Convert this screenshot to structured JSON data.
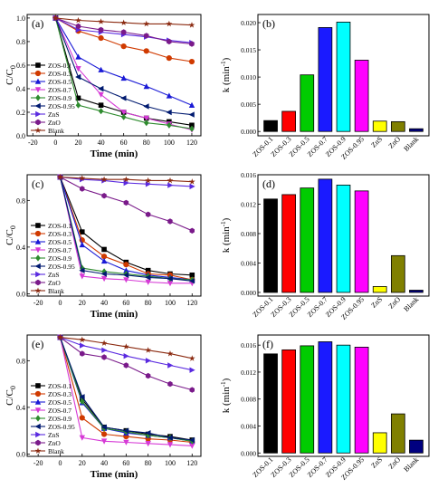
{
  "figure": {
    "background": "#ffffff"
  },
  "styles": {
    "ZOS-0.1": {
      "color": "#000000",
      "marker": "square"
    },
    "ZOS-0.3": {
      "color": "#d03a00",
      "marker": "circle"
    },
    "ZOS-0.5": {
      "color": "#1a1ad6",
      "marker": "triangle-up"
    },
    "ZOS-0.7": {
      "color": "#d63ad6",
      "marker": "triangle-down"
    },
    "ZOS-0.9": {
      "color": "#2e8b2e",
      "marker": "diamond"
    },
    "ZOS-0.95": {
      "color": "#001a70",
      "marker": "triangle-left"
    },
    "ZnS": {
      "color": "#5a2ae0",
      "marker": "triangle-right"
    },
    "ZnO": {
      "color": "#7a1a8a",
      "marker": "hexagon"
    },
    "Blank": {
      "color": "#8b2a10",
      "marker": "star"
    }
  },
  "chart_data": [
    {
      "panel": "(a)",
      "type": "line",
      "xlabel": "Time (min)",
      "ylabel": "C/C",
      "ylabel_sub": "0",
      "xlim": [
        -25,
        128
      ],
      "ylim": [
        0,
        1.03
      ],
      "xticks": [
        -20,
        0,
        20,
        40,
        60,
        80,
        100,
        120
      ],
      "yticks": [
        0.0,
        0.2,
        0.4,
        0.6,
        0.8,
        1.0
      ],
      "ytick_labels": [
        "0.0",
        "0.2",
        "0.4",
        "0.6",
        "0.8",
        "1.0"
      ],
      "legend": "left",
      "x": [
        0,
        20,
        40,
        60,
        80,
        100,
        120
      ],
      "series": [
        {
          "name": "ZOS-0.1",
          "values": [
            1.0,
            0.32,
            0.26,
            0.2,
            0.15,
            0.12,
            0.09
          ]
        },
        {
          "name": "ZOS-0.3",
          "values": [
            1.0,
            0.89,
            0.83,
            0.76,
            0.72,
            0.66,
            0.63
          ]
        },
        {
          "name": "ZOS-0.5",
          "values": [
            1.0,
            0.67,
            0.56,
            0.49,
            0.42,
            0.34,
            0.26
          ]
        },
        {
          "name": "ZOS-0.7",
          "values": [
            1.0,
            0.57,
            0.35,
            0.2,
            0.15,
            0.1,
            0.05
          ]
        },
        {
          "name": "ZOS-0.9",
          "values": [
            1.0,
            0.26,
            0.21,
            0.16,
            0.11,
            0.09,
            0.06
          ]
        },
        {
          "name": "ZOS-0.95",
          "values": [
            1.0,
            0.5,
            0.4,
            0.32,
            0.25,
            0.2,
            0.18
          ]
        },
        {
          "name": "ZnS",
          "values": [
            1.0,
            0.9,
            0.88,
            0.86,
            0.84,
            0.81,
            0.79
          ]
        },
        {
          "name": "ZnO",
          "values": [
            1.0,
            0.93,
            0.9,
            0.88,
            0.85,
            0.8,
            0.78
          ]
        },
        {
          "name": "Blank",
          "values": [
            1.0,
            0.98,
            0.97,
            0.96,
            0.95,
            0.95,
            0.94
          ]
        }
      ]
    },
    {
      "panel": "(b)",
      "type": "bar",
      "ylabel": "k (min",
      "ylabel_sup": "-1",
      "ylim": [
        -0.0008,
        0.0215
      ],
      "yticks": [
        0,
        0.005,
        0.01,
        0.015,
        0.02
      ],
      "ytick_labels": [
        "0.000",
        "0.005",
        "0.010",
        "0.015",
        "0.020"
      ],
      "categories": [
        "ZOS-0.1",
        "ZOS-0.3",
        "ZOS-0.5",
        "ZOS-0.7",
        "ZOS-0.9",
        "ZOS-0.95",
        "ZnS",
        "ZnO",
        "Blank"
      ],
      "values": [
        0.002,
        0.0037,
        0.0104,
        0.0191,
        0.0201,
        0.0131,
        0.0019,
        0.0018,
        0.0005
      ],
      "colors": [
        "#000000",
        "#ff0000",
        "#00cc00",
        "#1a1aff",
        "#00ffff",
        "#ff00ff",
        "#ffff00",
        "#808000",
        "#000080"
      ]
    },
    {
      "panel": "(c)",
      "type": "line",
      "xlabel": "Time (min)",
      "ylabel": "C/C",
      "ylabel_sub": "0",
      "xlim": [
        -30,
        128
      ],
      "ylim": [
        -0.02,
        1.02
      ],
      "xticks": [
        -20,
        0,
        20,
        40,
        60,
        80,
        100,
        120
      ],
      "yticks": [
        0.0,
        0.4,
        0.8
      ],
      "ytick_labels": [
        "0.0",
        "0.4",
        "0.8"
      ],
      "legend": "left",
      "x": [
        0,
        20,
        40,
        60,
        80,
        100,
        120
      ],
      "series": [
        {
          "name": "ZOS-0.1",
          "values": [
            1.0,
            0.53,
            0.38,
            0.27,
            0.2,
            0.17,
            0.16
          ]
        },
        {
          "name": "ZOS-0.3",
          "values": [
            1.0,
            0.46,
            0.32,
            0.25,
            0.17,
            0.16,
            0.12
          ]
        },
        {
          "name": "ZOS-0.5",
          "values": [
            1.0,
            0.42,
            0.28,
            0.2,
            0.16,
            0.14,
            0.12
          ]
        },
        {
          "name": "ZOS-0.7",
          "values": [
            1.0,
            0.15,
            0.13,
            0.12,
            0.1,
            0.09,
            0.09
          ]
        },
        {
          "name": "ZOS-0.9",
          "values": [
            1.0,
            0.22,
            0.19,
            0.17,
            0.15,
            0.13,
            0.12
          ]
        },
        {
          "name": "ZOS-0.95",
          "values": [
            1.0,
            0.2,
            0.17,
            0.16,
            0.14,
            0.13,
            0.11
          ]
        },
        {
          "name": "ZnS",
          "values": [
            1.0,
            0.98,
            0.97,
            0.95,
            0.94,
            0.93,
            0.92
          ]
        },
        {
          "name": "ZnO",
          "values": [
            1.0,
            0.9,
            0.84,
            0.78,
            0.68,
            0.62,
            0.54
          ]
        },
        {
          "name": "Blank",
          "values": [
            1.0,
            0.99,
            0.98,
            0.98,
            0.97,
            0.97,
            0.96
          ]
        }
      ]
    },
    {
      "panel": "(d)",
      "type": "bar",
      "ylabel": "k (min",
      "ylabel_sup": "-1",
      "ylim": [
        -0.0005,
        0.016
      ],
      "yticks": [
        0,
        0.004,
        0.008,
        0.012,
        0.016
      ],
      "ytick_labels": [
        "0.000",
        "0.004",
        "0.008",
        "0.012",
        "0.016"
      ],
      "categories": [
        "ZOS-0.1",
        "ZOS-0.3",
        "ZOS-0.5",
        "ZOS-0.7",
        "ZOS-0.9",
        "ZOS-0.95",
        "ZnS",
        "ZnO",
        "Blank"
      ],
      "values": [
        0.0127,
        0.0133,
        0.0142,
        0.0154,
        0.0146,
        0.0138,
        0.0008,
        0.005,
        0.0003
      ],
      "colors": [
        "#000000",
        "#ff0000",
        "#00cc00",
        "#1a1aff",
        "#00ffff",
        "#ff00ff",
        "#ffff00",
        "#808000",
        "#000080"
      ]
    },
    {
      "panel": "(e)",
      "type": "line",
      "xlabel": "Time (min)",
      "ylabel": "C/C",
      "ylabel_sub": "0",
      "xlim": [
        -30,
        128
      ],
      "ylim": [
        -0.02,
        1.02
      ],
      "xticks": [
        -20,
        0,
        20,
        40,
        60,
        80,
        100,
        120
      ],
      "yticks": [
        0.0,
        0.4,
        0.8
      ],
      "ytick_labels": [
        "0.0",
        "0.4",
        "0.8"
      ],
      "legend": "left",
      "x": [
        0,
        20,
        40,
        60,
        80,
        100,
        120
      ],
      "series": [
        {
          "name": "ZOS-0.1",
          "values": [
            1.0,
            0.47,
            0.23,
            0.2,
            0.17,
            0.15,
            0.12
          ]
        },
        {
          "name": "ZOS-0.3",
          "values": [
            1.0,
            0.31,
            0.17,
            0.15,
            0.13,
            0.12,
            0.1
          ]
        },
        {
          "name": "ZOS-0.5",
          "values": [
            1.0,
            0.44,
            0.22,
            0.18,
            0.16,
            0.14,
            0.11
          ]
        },
        {
          "name": "ZOS-0.7",
          "values": [
            1.0,
            0.14,
            0.11,
            0.1,
            0.09,
            0.08,
            0.07
          ]
        },
        {
          "name": "ZOS-0.9",
          "values": [
            1.0,
            0.45,
            0.22,
            0.19,
            0.16,
            0.14,
            0.11
          ]
        },
        {
          "name": "ZOS-0.95",
          "values": [
            1.0,
            0.49,
            0.23,
            0.2,
            0.18,
            0.14,
            0.12
          ]
        },
        {
          "name": "ZnS",
          "values": [
            1.0,
            0.93,
            0.89,
            0.84,
            0.8,
            0.76,
            0.72
          ]
        },
        {
          "name": "ZnO",
          "values": [
            1.0,
            0.86,
            0.83,
            0.76,
            0.67,
            0.6,
            0.55
          ]
        },
        {
          "name": "Blank",
          "values": [
            1.0,
            0.98,
            0.95,
            0.92,
            0.89,
            0.86,
            0.82
          ]
        }
      ]
    },
    {
      "panel": "(f)",
      "type": "bar",
      "ylabel": "k (min",
      "ylabel_sup": "-1",
      "ylim": [
        -0.0005,
        0.0175
      ],
      "yticks": [
        0,
        0.004,
        0.008,
        0.012,
        0.016
      ],
      "ytick_labels": [
        "0.000",
        "0.004",
        "0.008",
        "0.012",
        "0.016"
      ],
      "categories": [
        "ZOS-0.1",
        "ZOS-0.3",
        "ZOS-0.5",
        "ZOS-0.7",
        "ZOS-0.9",
        "ZOS-0.95",
        "ZnS",
        "ZnO",
        "Blank"
      ],
      "values": [
        0.0147,
        0.0153,
        0.0159,
        0.0165,
        0.016,
        0.0157,
        0.003,
        0.0058,
        0.0019
      ],
      "colors": [
        "#000000",
        "#ff0000",
        "#00cc00",
        "#1a1aff",
        "#00ffff",
        "#ff00ff",
        "#ffff00",
        "#808000",
        "#000080"
      ]
    }
  ]
}
